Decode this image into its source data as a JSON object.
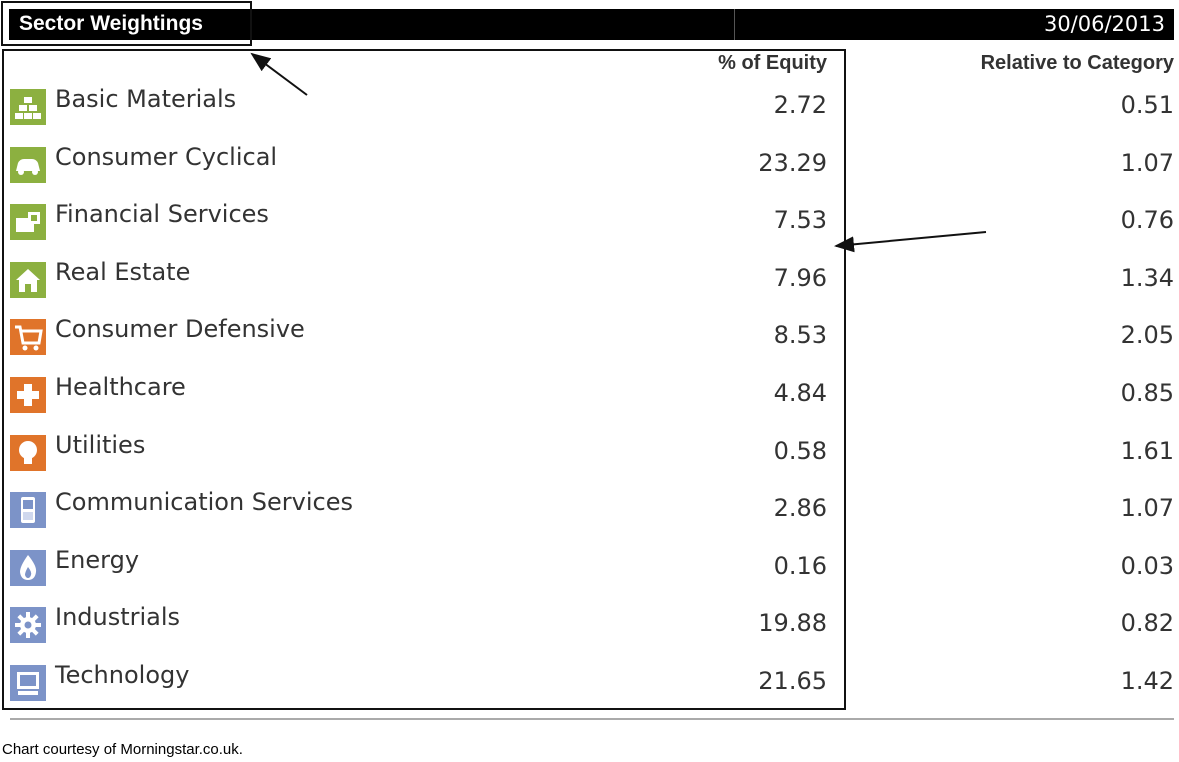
{
  "header": {
    "title": "Sector Weightings",
    "date": "30/06/2013"
  },
  "columns": {
    "equity": "% of Equity",
    "relative": "Relative to Category"
  },
  "colors": {
    "cyclical": "#8cb040",
    "defensive": "#e0742a",
    "sensitive": "#7c93c8"
  },
  "sectors": [
    {
      "name": "Basic Materials",
      "equity": "2.72",
      "relative": "0.51",
      "icon": "basic-materials-icon",
      "group": "cyclical"
    },
    {
      "name": "Consumer Cyclical",
      "equity": "23.29",
      "relative": "1.07",
      "icon": "car-icon",
      "group": "cyclical"
    },
    {
      "name": "Financial Services",
      "equity": "7.53",
      "relative": "0.76",
      "icon": "financial-services-icon",
      "group": "cyclical"
    },
    {
      "name": "Real Estate",
      "equity": "7.96",
      "relative": "1.34",
      "icon": "house-icon",
      "group": "cyclical"
    },
    {
      "name": "Consumer Defensive",
      "equity": "8.53",
      "relative": "2.05",
      "icon": "shopping-cart-icon",
      "group": "defensive"
    },
    {
      "name": "Healthcare",
      "equity": "4.84",
      "relative": "0.85",
      "icon": "medical-cross-icon",
      "group": "defensive"
    },
    {
      "name": "Utilities",
      "equity": "0.58",
      "relative": "1.61",
      "icon": "light-bulb-icon",
      "group": "defensive"
    },
    {
      "name": "Communication Services",
      "equity": "2.86",
      "relative": "1.07",
      "icon": "mobile-phone-icon",
      "group": "sensitive"
    },
    {
      "name": "Energy",
      "equity": "0.16",
      "relative": "0.03",
      "icon": "flame-icon",
      "group": "sensitive"
    },
    {
      "name": "Industrials",
      "equity": "19.88",
      "relative": "0.82",
      "icon": "gear-icon",
      "group": "sensitive"
    },
    {
      "name": "Technology",
      "equity": "21.65",
      "relative": "1.42",
      "icon": "computer-icon",
      "group": "sensitive"
    }
  ],
  "footer": {
    "credit": "Chart courtesy of Morningstar.co.uk."
  }
}
